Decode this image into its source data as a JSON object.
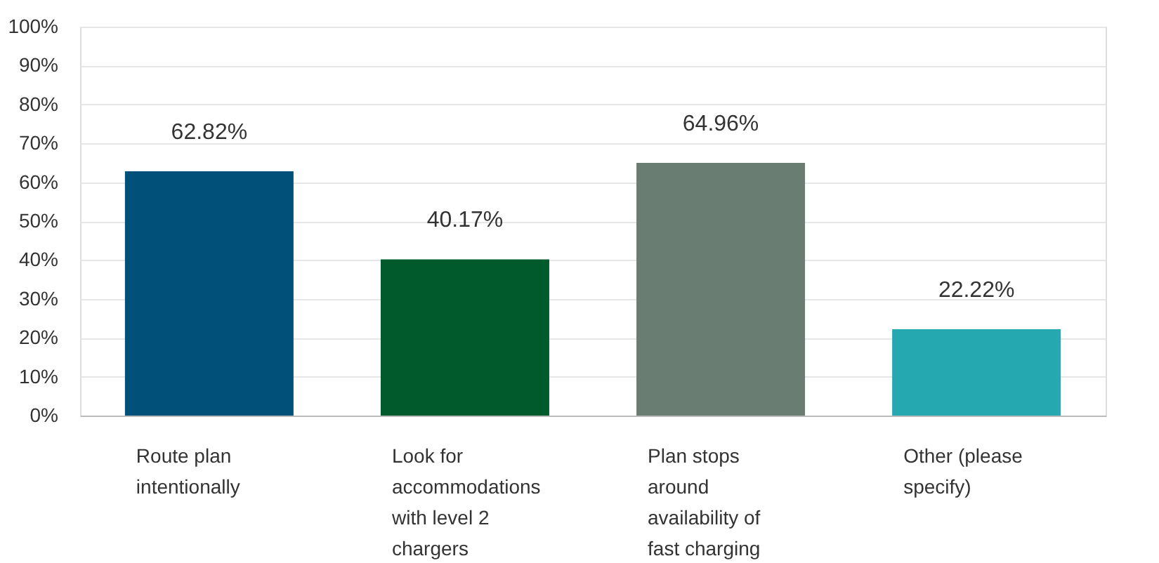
{
  "chart_data": {
    "type": "bar",
    "categories": [
      "Route plan intentionally",
      "Look for accommodations with level 2 chargers",
      "Plan stops around availability of fast charging",
      "Other (please specify)"
    ],
    "values": [
      62.82,
      40.17,
      64.96,
      22.22
    ],
    "colors": [
      "#00507a",
      "#005a2c",
      "#6a7d72",
      "#26a8b1"
    ],
    "value_labels": [
      "62.82%",
      "40.17%",
      "64.96%",
      "22.22%"
    ],
    "ylim": [
      0,
      100
    ],
    "yticks": [
      {
        "value": 0,
        "label": "0%"
      },
      {
        "value": 10,
        "label": "10%"
      },
      {
        "value": 20,
        "label": "20%"
      },
      {
        "value": 30,
        "label": "30%"
      },
      {
        "value": 40,
        "label": "40%"
      },
      {
        "value": 50,
        "label": "50%"
      },
      {
        "value": 60,
        "label": "60%"
      },
      {
        "value": 70,
        "label": "70%"
      },
      {
        "value": 80,
        "label": "80%"
      },
      {
        "value": 90,
        "label": "90%"
      },
      {
        "value": 100,
        "label": "100%"
      }
    ],
    "grid": "y"
  }
}
